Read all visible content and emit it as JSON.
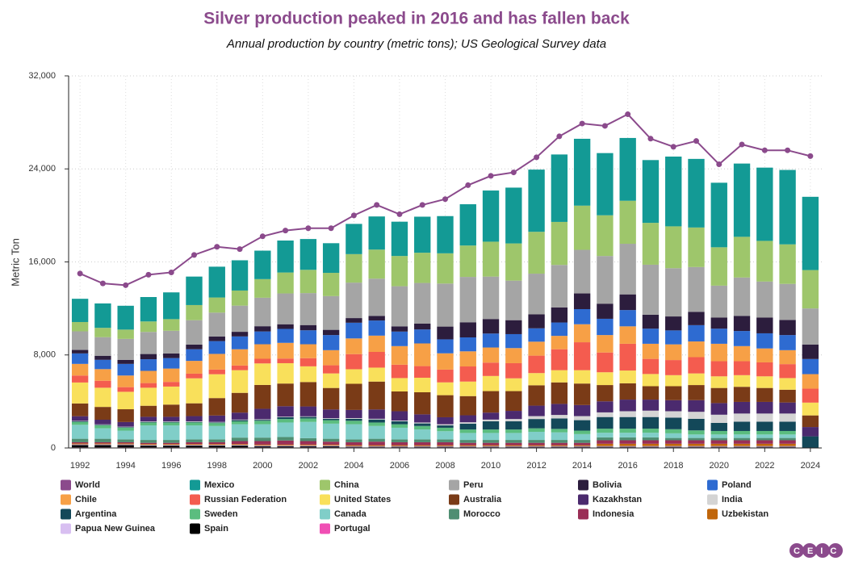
{
  "chart_data": {
    "type": "bar",
    "title": "Silver production peaked in 2016 and has fallen back",
    "subtitle": "Annual production by country (metric tons); US Geological Survey data",
    "y_label": "Metric Ton",
    "logo": "CEIC",
    "stacked": true,
    "grid": true,
    "legend": "bottom",
    "categories": [
      "1992",
      null,
      "1994",
      null,
      "1996",
      null,
      "1998",
      null,
      "2000",
      null,
      "2002",
      null,
      "2004",
      null,
      "2006",
      null,
      "2008",
      null,
      "2010",
      null,
      "2012",
      null,
      "2014",
      null,
      "2016",
      null,
      "2018",
      null,
      "2020",
      null,
      "2022",
      null,
      "2024"
    ],
    "ylim": [
      0,
      32000
    ],
    "yticks": [
      0,
      {
        "value": 8000,
        "label": "8,000"
      },
      {
        "value": 16000,
        "label": "16,000"
      },
      {
        "value": 24000,
        "label": "24,000"
      },
      {
        "value": 32000,
        "label": "32,000"
      }
    ],
    "series": [
      {
        "name": "World",
        "type": "line",
        "color": "#8b4a8c",
        "values": [
          15000,
          14150,
          14000,
          14900,
          15100,
          16600,
          17300,
          17100,
          18200,
          18700,
          18900,
          18900,
          20000,
          20900,
          20100,
          20900,
          21400,
          22600,
          23400,
          23700,
          25000,
          26800,
          27900,
          27700,
          28700,
          26600,
          25900,
          26400,
          24400,
          26100,
          25600,
          25600,
          25100
        ]
      },
      {
        "name": "Mexico",
        "type": "bar",
        "color": "#139a95",
        "values": [
          2000,
          2100,
          2050,
          2100,
          2300,
          2450,
          2650,
          2600,
          2450,
          2750,
          2650,
          2550,
          2600,
          2850,
          2950,
          3100,
          3200,
          3550,
          4400,
          4800,
          5350,
          5800,
          5750,
          5350,
          5400,
          5400,
          6000,
          5900,
          5550,
          6300,
          6300,
          6400,
          6300
        ]
      },
      {
        "name": "China",
        "type": "bar",
        "color": "#9ec66b",
        "values": [
          800,
          800,
          800,
          900,
          1000,
          1300,
          1300,
          1300,
          1600,
          1800,
          2000,
          2000,
          2450,
          2500,
          2600,
          2600,
          2600,
          2700,
          3000,
          3200,
          3600,
          3700,
          3800,
          3500,
          3700,
          3600,
          3600,
          3400,
          3300,
          3500,
          3500,
          3400,
          3300
        ]
      },
      {
        "name": "Peru",
        "type": "bar",
        "color": "#a5a5a5",
        "values": [
          1600,
          1600,
          1800,
          1900,
          1950,
          2100,
          2050,
          2250,
          2450,
          2650,
          2750,
          2900,
          3050,
          3200,
          3450,
          3500,
          3700,
          3900,
          3650,
          3400,
          3500,
          3650,
          3750,
          4100,
          4350,
          4300,
          4150,
          3850,
          2750,
          3300,
          3100,
          3100,
          3100
        ]
      },
      {
        "name": "Bolivia",
        "type": "bar",
        "color": "#2c1d3d",
        "values": [
          300,
          350,
          350,
          450,
          400,
          400,
          400,
          400,
          450,
          400,
          450,
          450,
          400,
          400,
          450,
          500,
          1100,
          1300,
          1250,
          1200,
          1200,
          1300,
          1350,
          1300,
          1350,
          1200,
          1200,
          1150,
          950,
          1300,
          1350,
          1300,
          1250
        ]
      },
      {
        "name": "Poland",
        "type": "bar",
        "color": "#2e6bd1",
        "values": [
          900,
          800,
          1000,
          1000,
          900,
          1000,
          1100,
          1100,
          1100,
          1200,
          1200,
          1300,
          1350,
          1300,
          1250,
          1200,
          1200,
          1200,
          1200,
          1200,
          1150,
          1150,
          1300,
          1400,
          1400,
          1300,
          1200,
          1400,
          1300,
          1300,
          1300,
          1300,
          1300
        ]
      },
      {
        "name": "Chile",
        "type": "bar",
        "color": "#f7a046",
        "values": [
          1000,
          1000,
          1000,
          1050,
          1150,
          1100,
          1350,
          1400,
          1250,
          1350,
          1200,
          1300,
          1350,
          1400,
          1600,
          1950,
          1400,
          1300,
          1300,
          1300,
          1200,
          1150,
          1550,
          1500,
          1500,
          1300,
          1350,
          1350,
          1500,
          1300,
          1200,
          1200,
          1250
        ]
      },
      {
        "name": "Russian Federation",
        "type": "bar",
        "color": "#f45c4f",
        "values": [
          600,
          600,
          400,
          400,
          400,
          400,
          400,
          400,
          400,
          400,
          700,
          700,
          1300,
          1350,
          1150,
          1000,
          1100,
          1300,
          1150,
          1300,
          1500,
          1800,
          2400,
          1700,
          2300,
          1300,
          1300,
          1400,
          1300,
          1200,
          1200,
          1200,
          1200
        ]
      },
      {
        "name": "United States",
        "type": "bar",
        "color": "#f9e05b",
        "values": [
          1800,
          1650,
          1500,
          1550,
          1550,
          2150,
          2050,
          1950,
          1850,
          1750,
          1350,
          1250,
          1250,
          1200,
          1150,
          1250,
          1100,
          1250,
          1300,
          1100,
          1050,
          1050,
          1150,
          1100,
          1100,
          1050,
          950,
          1000,
          1000,
          1000,
          1000,
          1000,
          1100
        ]
      },
      {
        "name": "Australia",
        "type": "bar",
        "color": "#7a3b17",
        "values": [
          1100,
          1100,
          1100,
          950,
          1050,
          1100,
          1500,
          1700,
          2050,
          1950,
          2100,
          1850,
          2250,
          2400,
          1700,
          1900,
          1900,
          1650,
          1850,
          1700,
          1750,
          1850,
          1850,
          1400,
          1400,
          1150,
          1200,
          1300,
          1300,
          1300,
          1200,
          1100,
          1000
        ]
      },
      {
        "name": "Kazakhstan",
        "type": "bar",
        "color": "#4b2a6e",
        "values": [
          400,
          400,
          400,
          400,
          400,
          450,
          550,
          600,
          900,
          900,
          850,
          750,
          700,
          800,
          800,
          700,
          600,
          600,
          600,
          700,
          900,
          950,
          950,
          950,
          1000,
          950,
          950,
          1000,
          1000,
          1000,
          1000,
          950,
          800
        ]
      },
      {
        "name": "India",
        "type": "bar",
        "color": "#d4d4d4",
        "values": [
          40,
          40,
          40,
          40,
          40,
          50,
          50,
          50,
          50,
          50,
          50,
          50,
          60,
          60,
          70,
          80,
          100,
          120,
          150,
          200,
          250,
          300,
          350,
          400,
          500,
          550,
          550,
          600,
          700,
          700,
          700,
          700,
          null
        ]
      },
      {
        "name": "Argentina",
        "type": "bar",
        "color": "#134859",
        "values": [
          50,
          50,
          50,
          50,
          50,
          50,
          50,
          100,
          80,
          150,
          130,
          120,
          170,
          260,
          250,
          220,
          200,
          500,
          700,
          700,
          800,
          900,
          900,
          1000,
          1000,
          1000,
          1000,
          1000,
          700,
          800,
          800,
          800,
          1000
        ]
      },
      {
        "name": "Sweden",
        "type": "bar",
        "color": "#5bbd7f",
        "values": [
          250,
          250,
          250,
          250,
          250,
          250,
          250,
          250,
          300,
          300,
          300,
          300,
          300,
          300,
          300,
          300,
          300,
          300,
          300,
          300,
          300,
          300,
          300,
          350,
          350,
          350,
          350,
          350,
          300,
          300,
          300,
          300,
          null
        ]
      },
      {
        "name": "Canada",
        "type": "bar",
        "color": "#80cec8",
        "values": [
          1200,
          900,
          750,
          1250,
          1250,
          1200,
          1150,
          1150,
          1150,
          1250,
          1400,
          1300,
          1300,
          1100,
          1000,
          850,
          700,
          600,
          600,
          600,
          700,
          650,
          500,
          400,
          400,
          400,
          400,
          300,
          300,
          300,
          300,
          300,
          null
        ]
      },
      {
        "name": "Morocco",
        "type": "bar",
        "color": "#4f8e72",
        "values": [
          300,
          300,
          250,
          250,
          250,
          250,
          250,
          300,
          300,
          300,
          250,
          250,
          250,
          250,
          250,
          250,
          250,
          250,
          250,
          250,
          250,
          250,
          250,
          250,
          250,
          250,
          200,
          200,
          200,
          200,
          200,
          200,
          null
        ]
      },
      {
        "name": "Indonesia",
        "type": "bar",
        "color": "#9a2f56",
        "values": [
          100,
          100,
          100,
          100,
          100,
          150,
          150,
          250,
          300,
          350,
          300,
          250,
          250,
          300,
          250,
          250,
          250,
          200,
          200,
          200,
          200,
          200,
          200,
          300,
          300,
          300,
          300,
          300,
          300,
          300,
          300,
          300,
          null
        ]
      },
      {
        "name": "Uzbekistan",
        "type": "bar",
        "color": "#c0660b",
        "values": [
          80,
          80,
          80,
          80,
          80,
          80,
          80,
          80,
          80,
          80,
          80,
          80,
          80,
          80,
          80,
          80,
          80,
          80,
          80,
          80,
          80,
          80,
          80,
          200,
          200,
          200,
          200,
          200,
          200,
          200,
          200,
          200,
          null
        ]
      },
      {
        "name": "Papua New Guinea",
        "type": "bar",
        "color": "#d8bff1",
        "values": [
          60,
          60,
          60,
          60,
          60,
          60,
          60,
          60,
          60,
          60,
          60,
          60,
          60,
          60,
          60,
          60,
          60,
          60,
          60,
          60,
          60,
          60,
          60,
          60,
          60,
          60,
          60,
          60,
          60,
          60,
          60,
          60,
          null
        ]
      },
      {
        "name": "Spain",
        "type": "bar",
        "color": "#000000",
        "values": [
          200,
          200,
          200,
          150,
          150,
          150,
          150,
          150,
          100,
          100,
          100,
          100,
          50,
          50,
          50,
          50,
          50,
          50,
          50,
          50,
          50,
          50,
          50,
          50,
          50,
          50,
          50,
          50,
          50,
          50,
          50,
          50,
          null
        ]
      },
      {
        "name": "Portugal",
        "type": "bar",
        "color": "#f04fb4",
        "values": [
          50,
          50,
          50,
          50,
          50,
          50,
          50,
          50,
          50,
          50,
          50,
          50,
          50,
          50,
          50,
          50,
          50,
          50,
          50,
          50,
          50,
          50,
          50,
          50,
          50,
          50,
          50,
          50,
          50,
          50,
          50,
          50,
          null
        ]
      }
    ]
  }
}
